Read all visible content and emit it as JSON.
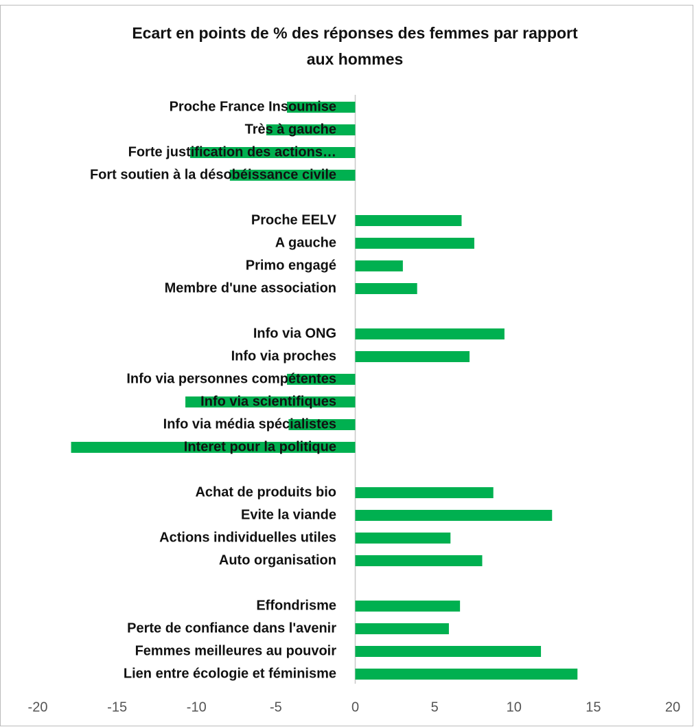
{
  "chart_data": {
    "type": "bar",
    "orientation": "horizontal",
    "title": [
      "Ecart en points de % des réponses des femmes par rapport",
      "aux hommes"
    ],
    "categories": [
      "Proche France Insoumise",
      "Très à gauche",
      "Forte justification des actions…",
      "Fort soutien à la désobéissance civile",
      null,
      "Proche EELV",
      "A gauche",
      "Primo engagé",
      "Membre d'une association",
      null,
      "Info via ONG",
      "Info via proches",
      "Info via personnes compétentes",
      "Info via scientifiques",
      "Info via média spécialistes",
      "Interet pour la politique",
      null,
      "Achat de produits bio",
      "Evite la viande",
      "Actions individuelles utiles",
      "Auto organisation",
      null,
      "Effondrisme",
      "Perte de confiance dans l'avenir",
      "Femmes meilleures au pouvoir",
      "Lien entre écologie et féminisme"
    ],
    "values": [
      -4.3,
      -5.6,
      -10.4,
      -7.9,
      null,
      6.7,
      7.5,
      3.0,
      3.9,
      null,
      9.4,
      7.2,
      -4.3,
      -10.7,
      -4.2,
      -17.9,
      null,
      8.7,
      12.4,
      6.0,
      8.0,
      null,
      6.6,
      5.9,
      11.7,
      14.0
    ],
    "color": "#00b050",
    "xlim": [
      -20,
      20
    ],
    "xticks": [
      -20,
      -15,
      -10,
      -5,
      0,
      5,
      10,
      15,
      20
    ],
    "grid": false
  }
}
